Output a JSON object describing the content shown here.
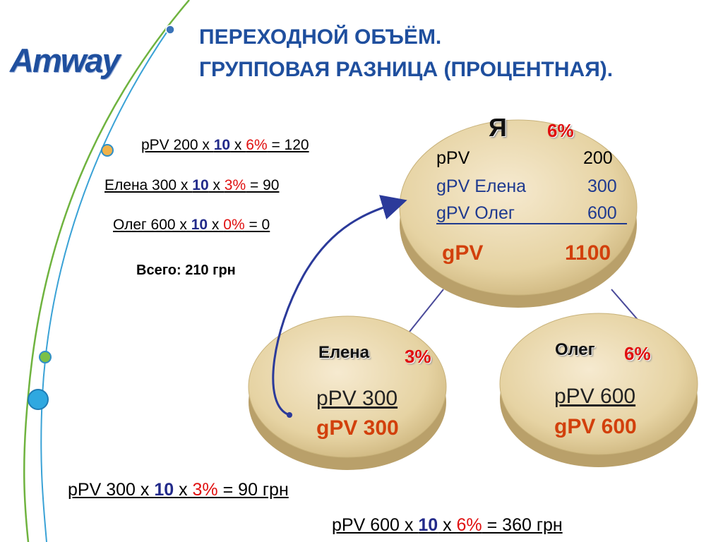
{
  "logo": {
    "text": "Amway"
  },
  "title": {
    "line1": "ПЕРЕХОДНОЙ ОБЪЁМ.",
    "line2": "ГРУППОВАЯ РАЗНИЦА (ПРОЦЕНТНАЯ)."
  },
  "calculations": [
    {
      "prefix": "pPV 200 х ",
      "mult": "10",
      "x": " х ",
      "pct": "6%",
      "result": " = 120"
    },
    {
      "prefix": " Елена 300 х ",
      "mult": "10",
      "x": " х ",
      "pct": "3%",
      "result": " = 90"
    },
    {
      "prefix": "Олег 600 х ",
      "mult": "10",
      "x": " х ",
      "pct": "0%",
      "result": " =  0"
    }
  ],
  "total": "Всего: 210 грн",
  "nodes": {
    "me": {
      "name": "Я",
      "pct": "6%",
      "rows": [
        {
          "label": "pPV",
          "value": "200"
        },
        {
          "label": "gPV Елена",
          "value": "300"
        },
        {
          "label": "gPV Олег",
          "value": "600"
        }
      ],
      "total_label": "gPV",
      "total_value": "1100"
    },
    "elena": {
      "name": "Елена",
      "pct": "3%",
      "ppv": "pPV 300",
      "gpv": "gPV 300"
    },
    "oleg": {
      "name": "Олег",
      "pct": "6%",
      "ppv": "pPV 600",
      "gpv": "gPV 600"
    }
  },
  "bottom_calcs": [
    {
      "prefix": "pPV 300 х ",
      "mult": "10",
      "x": " х ",
      "pct": "3%",
      "result": " = 90 грн"
    },
    {
      "prefix": "pPV 600 х ",
      "mult": "10",
      "x": " х ",
      "pct": "6%",
      "result": " = 360 грн"
    }
  ],
  "colors": {
    "title": "#1f4f9e",
    "accent_red": "#e01010",
    "accent_orange": "#d2400c",
    "multiplier_blue": "#222a8a",
    "disc_fill": "#ecdcb0",
    "arrow": "#2b3a9a"
  }
}
